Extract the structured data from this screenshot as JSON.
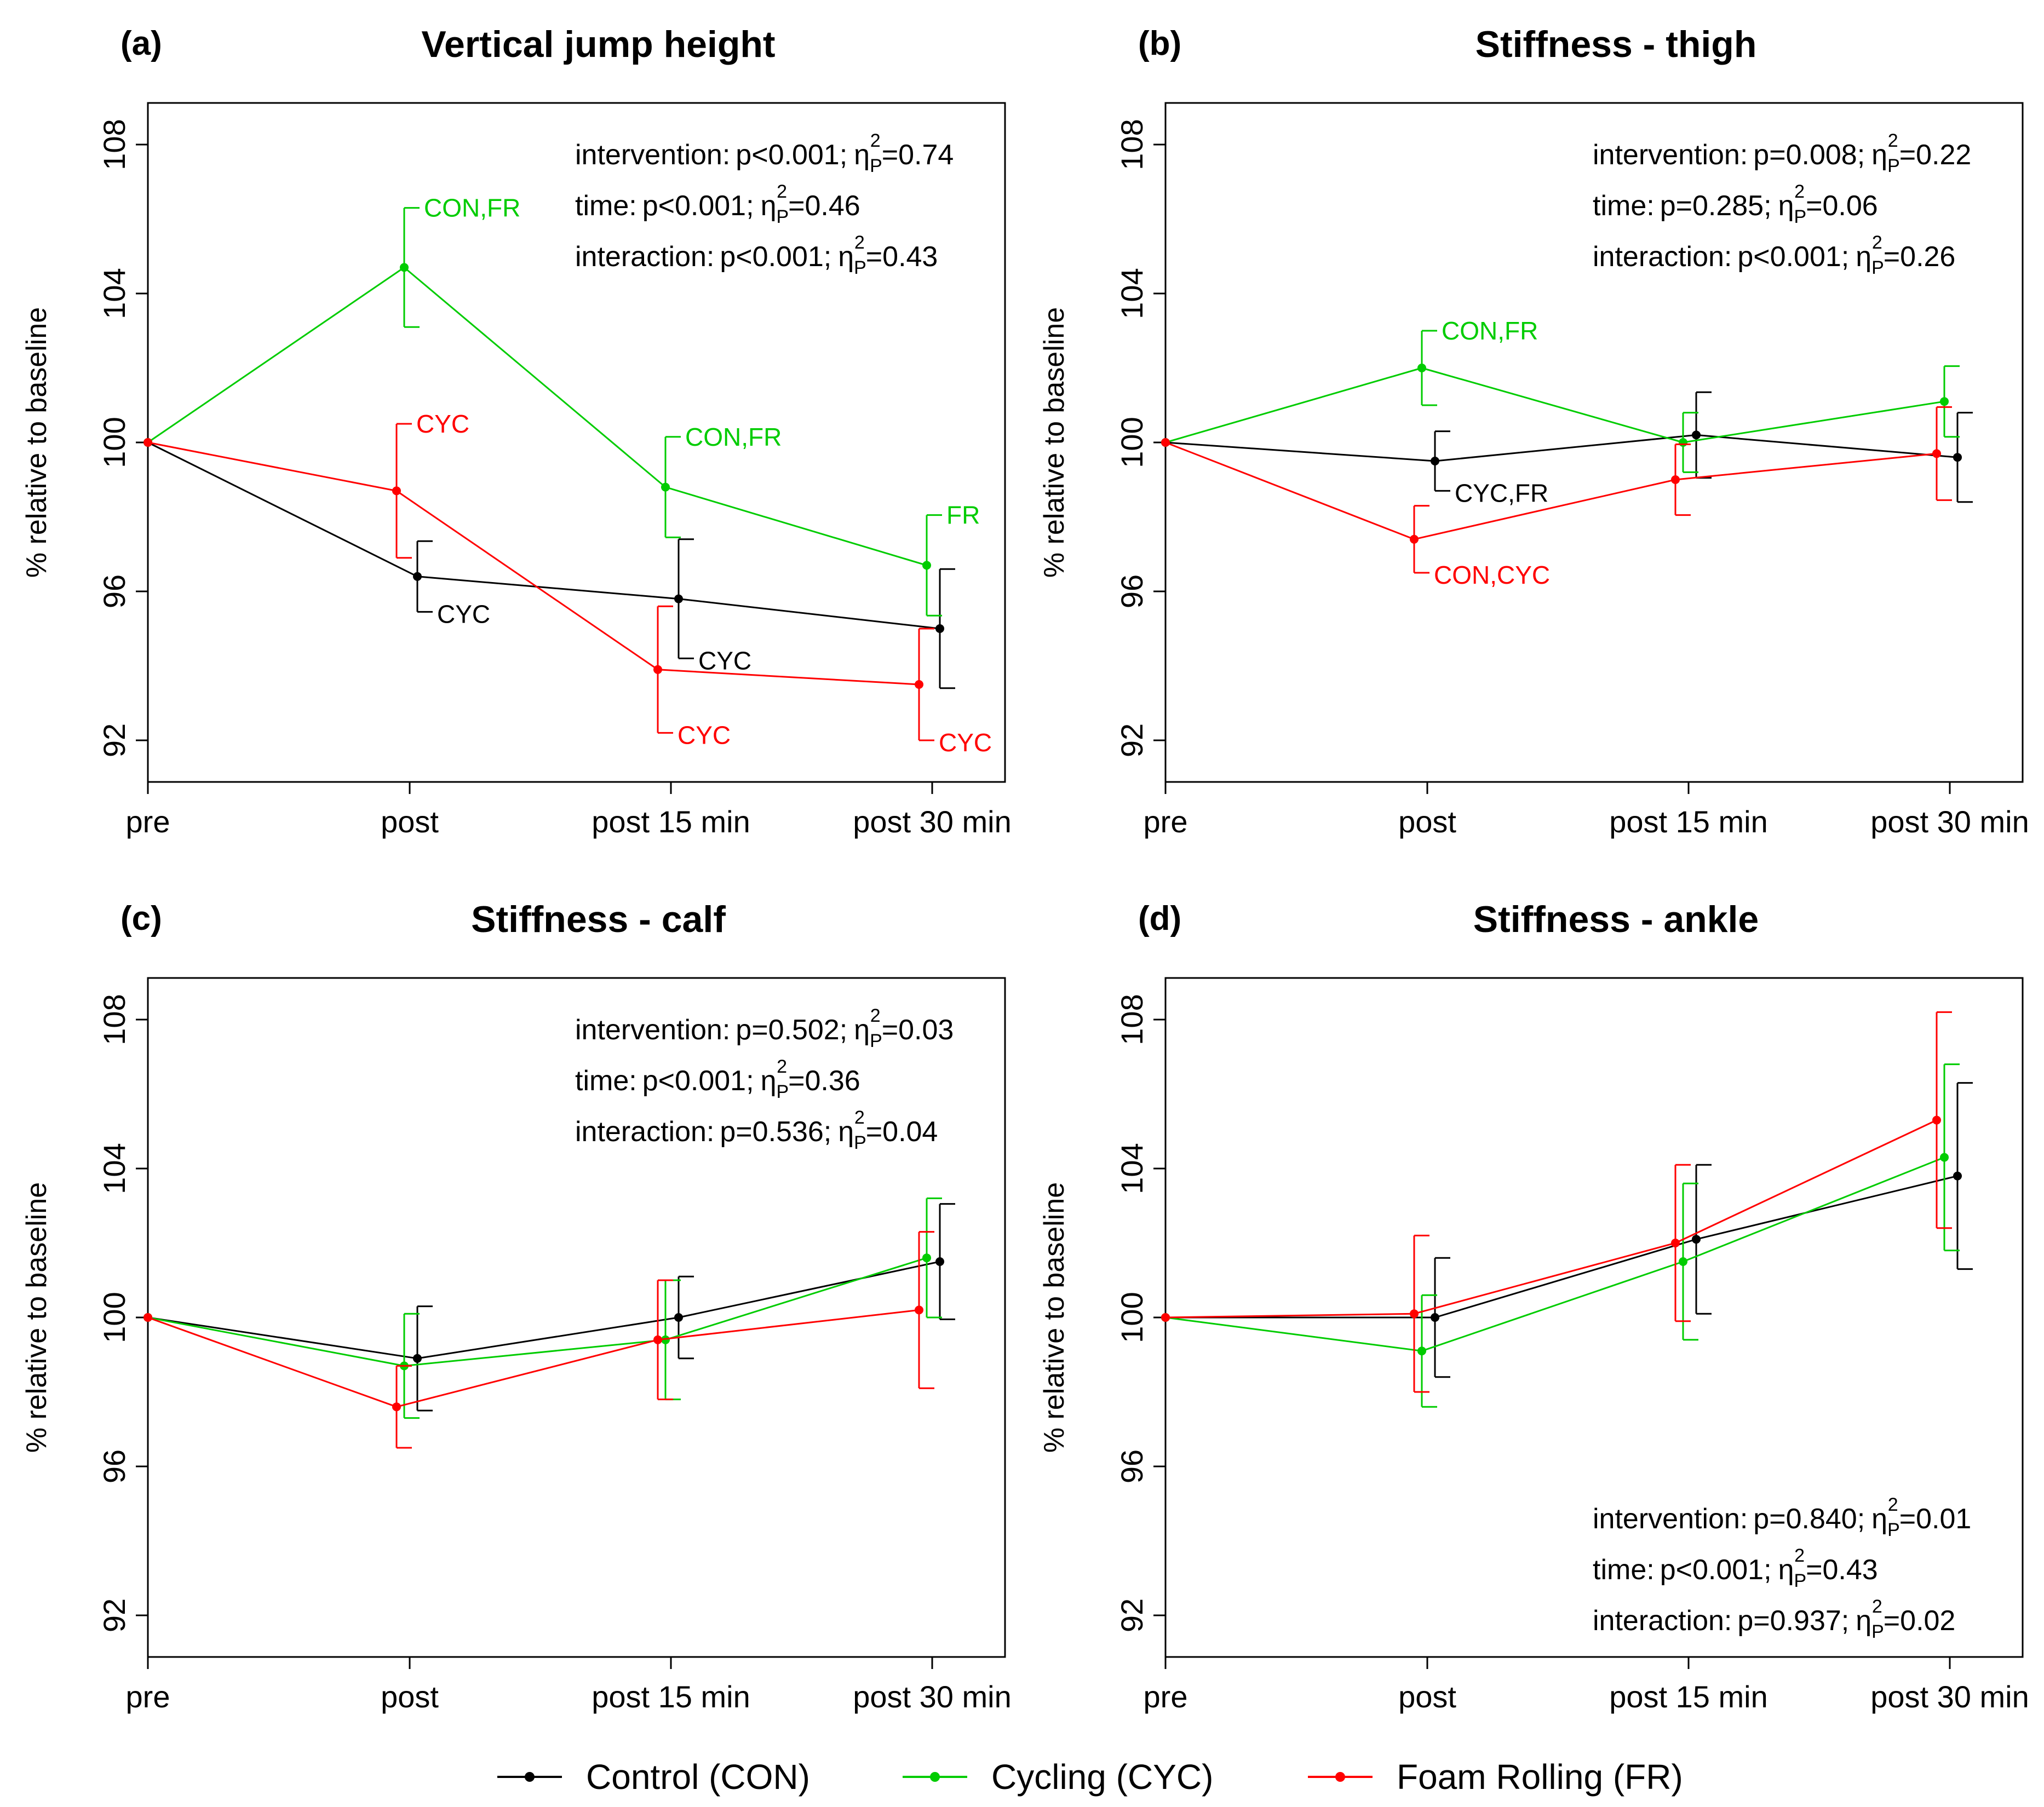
{
  "colors": {
    "control": "#000000",
    "cycling": "#00cc00",
    "foam": "#ff0000"
  },
  "chart_data": [
    {
      "type": "line",
      "panel": "(a)",
      "title": "Vertical jump height",
      "ylabel": "% relative to baseline",
      "ylim": [
        91.5,
        108.5
      ],
      "yticks": [
        92,
        96,
        100,
        104,
        108
      ],
      "categories": [
        "pre",
        "post",
        "post 15 min",
        "post 30 min"
      ],
      "stats": [
        {
          "label": "intervention:",
          "p": "p<0.001;",
          "eta": "=0.74"
        },
        {
          "label": "time:",
          "p": "p<0.001;",
          "eta": "=0.46"
        },
        {
          "label": "interaction:",
          "p": "p<0.001;",
          "eta": "=0.43"
        }
      ],
      "stats_position": "top-right",
      "series": [
        {
          "name": "Control (CON)",
          "color": "#000000",
          "values": [
            100,
            96.4,
            95.8,
            95.0
          ],
          "err": [
            0,
            0.95,
            1.6,
            1.6
          ]
        },
        {
          "name": "Cycling (CYC)",
          "color": "#00cc00",
          "values": [
            100,
            104.7,
            98.8,
            96.7
          ],
          "err": [
            0,
            1.6,
            1.35,
            1.35
          ]
        },
        {
          "name": "Foam Rolling (FR)",
          "color": "#ff0000",
          "values": [
            100,
            98.7,
            93.9,
            93.5
          ],
          "err": [
            0,
            1.8,
            1.7,
            1.5
          ]
        }
      ],
      "annotations": [
        {
          "text": "CON,FR",
          "series": 1,
          "point": 1,
          "pos": "above"
        },
        {
          "text": "CYC",
          "series": 2,
          "point": 1,
          "pos": "above"
        },
        {
          "text": "CYC",
          "series": 0,
          "point": 1,
          "pos": "below"
        },
        {
          "text": "CON,FR",
          "series": 1,
          "point": 2,
          "pos": "above"
        },
        {
          "text": "CYC",
          "series": 0,
          "point": 2,
          "pos": "below"
        },
        {
          "text": "CYC",
          "series": 2,
          "point": 2,
          "pos": "below"
        },
        {
          "text": "FR",
          "series": 1,
          "point": 3,
          "pos": "above"
        },
        {
          "text": "CYC",
          "series": 2,
          "point": 3,
          "pos": "below"
        }
      ]
    },
    {
      "type": "line",
      "panel": "(b)",
      "title": "Stiffness - thigh",
      "ylabel": "% relative to baseline",
      "ylim": [
        91.5,
        108.5
      ],
      "yticks": [
        92,
        96,
        100,
        104,
        108
      ],
      "categories": [
        "pre",
        "post",
        "post 15 min",
        "post 30 min"
      ],
      "stats": [
        {
          "label": "intervention:",
          "p": "p=0.008;",
          "eta": "=0.22"
        },
        {
          "label": "time:",
          "p": "p=0.285;",
          "eta": "=0.06"
        },
        {
          "label": "interaction:",
          "p": "p<0.001;",
          "eta": "=0.26"
        }
      ],
      "stats_position": "top-right",
      "series": [
        {
          "name": "Control (CON)",
          "color": "#000000",
          "values": [
            100,
            99.5,
            100.2,
            99.6
          ],
          "err": [
            0,
            0.8,
            1.15,
            1.2
          ]
        },
        {
          "name": "Cycling (CYC)",
          "color": "#00cc00",
          "values": [
            100,
            102.0,
            100.0,
            101.1
          ],
          "err": [
            0,
            1.0,
            0.8,
            0.95
          ]
        },
        {
          "name": "Foam Rolling (FR)",
          "color": "#ff0000",
          "values": [
            100,
            97.4,
            99.0,
            99.7
          ],
          "err": [
            0,
            0.9,
            0.95,
            1.25
          ]
        }
      ],
      "annotations": [
        {
          "text": "CON,FR",
          "series": 1,
          "point": 1,
          "pos": "above"
        },
        {
          "text": "CYC,FR",
          "series": 0,
          "point": 1,
          "pos": "below"
        },
        {
          "text": "CON,CYC",
          "series": 2,
          "point": 1,
          "pos": "below"
        }
      ]
    },
    {
      "type": "line",
      "panel": "(c)",
      "title": "Stiffness - calf",
      "ylabel": "% relative to baseline",
      "ylim": [
        91.5,
        108.5
      ],
      "yticks": [
        92,
        96,
        100,
        104,
        108
      ],
      "categories": [
        "pre",
        "post",
        "post 15 min",
        "post 30 min"
      ],
      "stats": [
        {
          "label": "intervention:",
          "p": "p=0.502;",
          "eta": "=0.03"
        },
        {
          "label": "time:",
          "p": "p<0.001;",
          "eta": "=0.36"
        },
        {
          "label": "interaction:",
          "p": "p=0.536;",
          "eta": "=0.04"
        }
      ],
      "stats_position": "top-right",
      "series": [
        {
          "name": "Control (CON)",
          "color": "#000000",
          "values": [
            100,
            98.9,
            100.0,
            101.5
          ],
          "err": [
            0,
            1.4,
            1.1,
            1.55
          ]
        },
        {
          "name": "Cycling (CYC)",
          "color": "#00cc00",
          "values": [
            100,
            98.7,
            99.4,
            101.6
          ],
          "err": [
            0,
            1.4,
            1.6,
            1.6
          ]
        },
        {
          "name": "Foam Rolling (FR)",
          "color": "#ff0000",
          "values": [
            100,
            97.6,
            99.4,
            100.2
          ],
          "err": [
            0,
            1.1,
            1.6,
            2.1
          ]
        }
      ],
      "annotations": []
    },
    {
      "type": "line",
      "panel": "(d)",
      "title": "Stiffness - ankle",
      "ylabel": "% relative to baseline",
      "ylim": [
        91.5,
        108.5
      ],
      "yticks": [
        92,
        96,
        100,
        104,
        108
      ],
      "categories": [
        "pre",
        "post",
        "post 15 min",
        "post 30 min"
      ],
      "stats": [
        {
          "label": "intervention:",
          "p": "p=0.840;",
          "eta": "=0.01"
        },
        {
          "label": "time:",
          "p": "p<0.001;",
          "eta": "=0.43"
        },
        {
          "label": "interaction:",
          "p": "p=0.937;",
          "eta": "=0.02"
        }
      ],
      "stats_position": "bottom-right",
      "series": [
        {
          "name": "Control (CON)",
          "color": "#000000",
          "values": [
            100,
            100.0,
            102.1,
            103.8
          ],
          "err": [
            0,
            1.6,
            2.0,
            2.5
          ]
        },
        {
          "name": "Cycling (CYC)",
          "color": "#00cc00",
          "values": [
            100,
            99.1,
            101.5,
            104.3
          ],
          "err": [
            0,
            1.5,
            2.1,
            2.5
          ]
        },
        {
          "name": "Foam Rolling (FR)",
          "color": "#ff0000",
          "values": [
            100,
            100.1,
            102.0,
            105.3
          ],
          "err": [
            0,
            2.1,
            2.1,
            2.9
          ]
        }
      ],
      "annotations": []
    }
  ],
  "legend": [
    {
      "label": "Control (CON)",
      "color": "#000000"
    },
    {
      "label": "Cycling (CYC)",
      "color": "#00cc00"
    },
    {
      "label": "Foam Rolling (FR)",
      "color": "#ff0000"
    }
  ]
}
